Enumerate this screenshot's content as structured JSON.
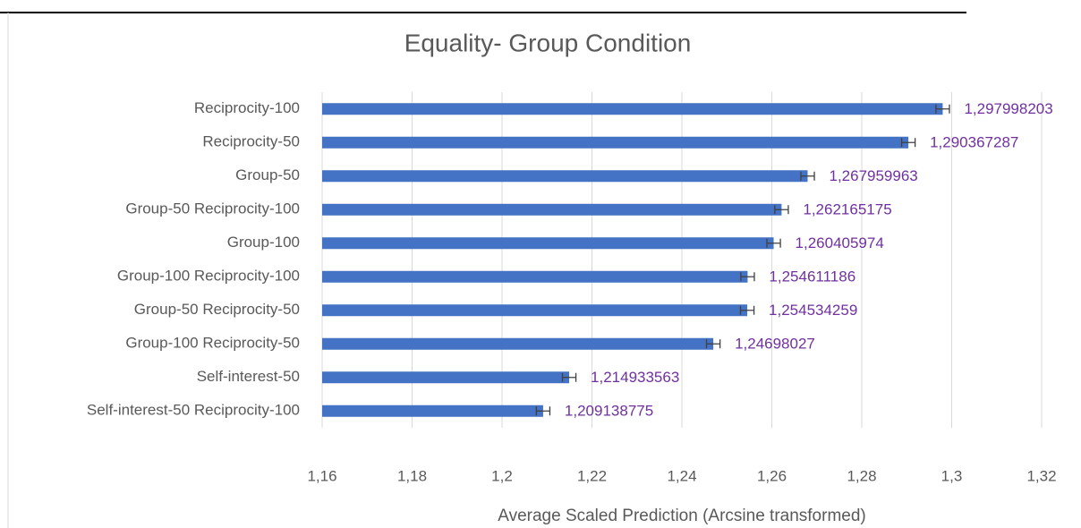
{
  "chart_data": {
    "type": "bar",
    "orientation": "horizontal",
    "title": "Equality- Group Condition",
    "x_label": "Average Scaled Prediction (Arcsine transformed)",
    "categories": [
      "Reciprocity-100",
      "Reciprocity-50",
      "Group-50",
      "Group-50 Reciprocity-100",
      "Group-100",
      "Group-100 Reciprocity-100",
      "Group-50 Reciprocity-50",
      "Group-100 Reciprocity-50",
      "Self-interest-50",
      "Self-interest-50 Reciprocity-100"
    ],
    "values": [
      1.297998203,
      1.290367287,
      1.267959963,
      1.262165175,
      1.260405974,
      1.254611186,
      1.254534259,
      1.24698027,
      1.214933563,
      1.209138775
    ],
    "value_labels": [
      "1,297998203",
      "1,290367287",
      "1,267959963",
      "1,262165175",
      "1,260405974",
      "1,254611186",
      "1,254534259",
      "1,24698027",
      "1,214933563",
      "1,209138775"
    ],
    "errors": [
      0.0015,
      0.0015,
      0.0015,
      0.0015,
      0.0015,
      0.0015,
      0.0015,
      0.0015,
      0.0015,
      0.0015
    ],
    "color": "#4472c4",
    "label_color": "#7030a0",
    "xlim": [
      1.16,
      1.32
    ],
    "xticks": [
      {
        "value": 1.16,
        "label": "1,16"
      },
      {
        "value": 1.18,
        "label": "1,18"
      },
      {
        "value": 1.2,
        "label": "1,2"
      },
      {
        "value": 1.22,
        "label": "1,22"
      },
      {
        "value": 1.24,
        "label": "1,24"
      },
      {
        "value": 1.26,
        "label": "1,26"
      },
      {
        "value": 1.28,
        "label": "1,28"
      },
      {
        "value": 1.3,
        "label": "1,3"
      },
      {
        "value": 1.32,
        "label": "1,32"
      }
    ],
    "grid": true
  }
}
